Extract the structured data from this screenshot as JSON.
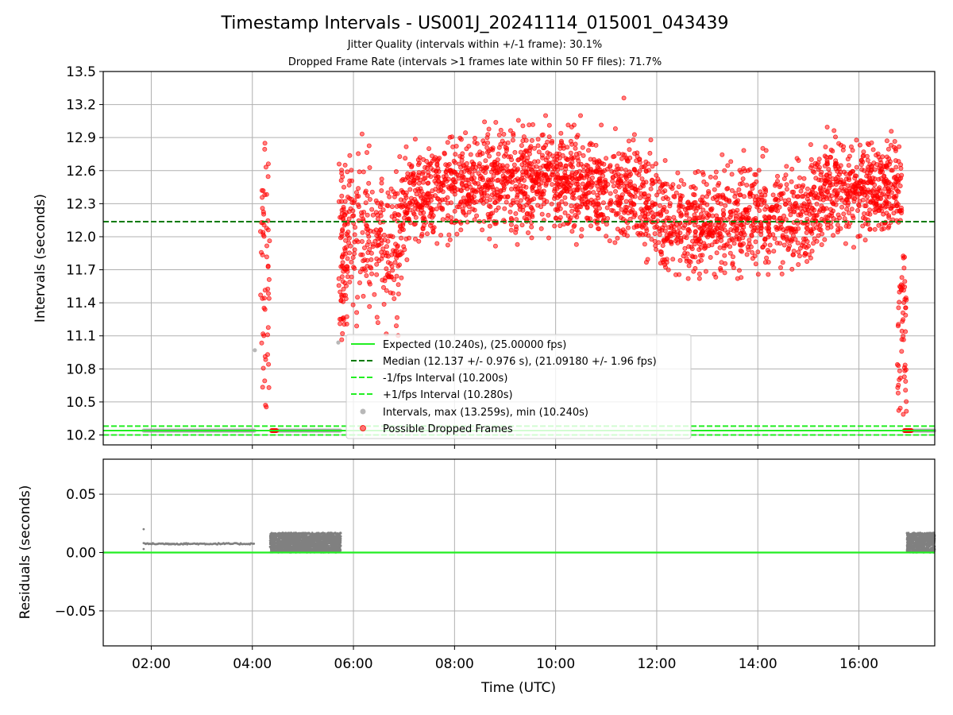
{
  "chart_data": [
    {
      "type": "scatter",
      "title": "Timestamp Intervals - US001J_20241114_015001_043439",
      "subtitle_1": "Jitter Quality (intervals within +/-1 frame): 30.1%",
      "subtitle_2": "Dropped Frame Rate (intervals >1 frames late within 50 FF files): 71.7%",
      "ylabel": "Intervals (seconds)",
      "xlabel": "",
      "xlim_hours": [
        1.05,
        17.5
      ],
      "ylim": [
        10.11,
        13.5
      ],
      "yticks": [
        10.2,
        10.5,
        10.8,
        11.1,
        11.4,
        11.7,
        12.0,
        12.3,
        12.6,
        12.9,
        13.2,
        13.5
      ],
      "ytick_labels": [
        "10.2",
        "10.5",
        "10.8",
        "11.1",
        "11.4",
        "11.7",
        "12.0",
        "12.3",
        "12.6",
        "12.9",
        "13.2",
        "13.5"
      ],
      "xticks_hours": [
        2,
        4,
        6,
        8,
        10,
        12,
        14,
        16
      ],
      "grid": true,
      "legend_position": "lower center",
      "reference_lines": [
        {
          "name": "Expected (10.240s), (25.00000 fps)",
          "y": 10.24,
          "style": "solid",
          "color": "#22ee22"
        },
        {
          "name": "Median (12.137 +/- 0.976 s), (21.09180 +/- 1.96 fps)",
          "y": 12.137,
          "style": "dashed",
          "color": "#007a00"
        },
        {
          "name": "-1/fps Interval (10.200s)",
          "y": 10.2,
          "style": "dashed",
          "color": "#22ee22"
        },
        {
          "name": "+1/fps Interval (10.280s)",
          "y": 10.28,
          "style": "dashed",
          "color": "#22ee22"
        }
      ],
      "series": [
        {
          "name": "Intervals, max (13.259s), min (10.240s)",
          "color": "#9a9a9a",
          "normal_segments": [
            [
              1.85,
              4.05
            ],
            [
              4.45,
              5.75
            ],
            [
              16.95,
              17.5
            ]
          ],
          "normal_value": 10.24,
          "outliers": [
            [
              4.05,
              10.97
            ],
            [
              5.7,
              11.04
            ]
          ]
        },
        {
          "name": "Possible Dropped Frames",
          "color": "#ff0000",
          "max_point": [
            11.35,
            13.259
          ],
          "dense_region": {
            "x_range": [
              6.95,
              16.85
            ],
            "level_points": [
              [
                6.95,
                12.3
              ],
              [
                8.0,
                12.45
              ],
              [
                10.0,
                12.55
              ],
              [
                11.5,
                12.4
              ],
              [
                12.3,
                12.1
              ],
              [
                13.5,
                12.15
              ],
              [
                15.0,
                12.2
              ],
              [
                15.3,
                12.45
              ],
              [
                16.85,
                12.45
              ]
            ],
            "spread": 0.22
          },
          "sparse_region": {
            "x_range": [
              5.75,
              6.95
            ],
            "center": 12.0,
            "spread": 0.35
          },
          "clusters": [
            {
              "x": 4.25,
              "y_range": [
                10.42,
                12.86
              ]
            },
            {
              "x": 5.8,
              "y_range": [
                11.05,
                12.7
              ]
            },
            {
              "x": 16.85,
              "y_range": [
                10.35,
                11.85
              ]
            }
          ],
          "baseline_clusters": [
            [
              4.38,
              4.48
            ],
            [
              16.9,
              17.05
            ]
          ],
          "baseline_value": 10.24
        }
      ]
    },
    {
      "type": "scatter",
      "title": "",
      "ylabel": "Residuals (seconds)",
      "xlabel": "Time (UTC)",
      "xlim_hours": [
        1.05,
        17.5
      ],
      "ylim": [
        -0.08,
        0.08
      ],
      "yticks": [
        -0.05,
        0.0,
        0.05
      ],
      "ytick_labels": [
        "−0.05",
        "0.00",
        "0.05"
      ],
      "xticks_hours": [
        2,
        4,
        6,
        8,
        10,
        12,
        14,
        16
      ],
      "xtick_labels": [
        "02:00",
        "04:00",
        "06:00",
        "08:00",
        "10:00",
        "12:00",
        "14:00",
        "16:00"
      ],
      "grid": true,
      "zero_line_color": "#22ee22",
      "series": [
        {
          "name": "Residuals",
          "color": "#808080",
          "line_segment": {
            "x_range": [
              1.85,
              4.05
            ],
            "y": 0.0075
          },
          "start_points": [
            [
              1.85,
              0.02
            ],
            [
              1.85,
              0.003
            ]
          ],
          "bands": [
            [
              4.35,
              5.75
            ],
            [
              16.95,
              17.5
            ]
          ],
          "band_range": [
            0.0,
            0.017
          ]
        }
      ]
    }
  ]
}
